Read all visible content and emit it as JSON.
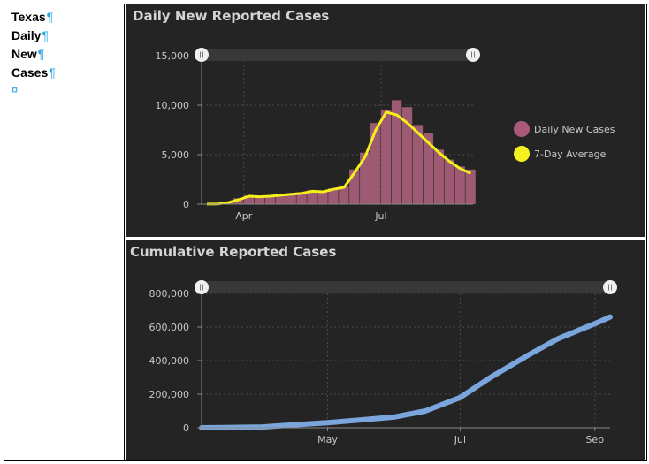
{
  "document": {
    "lines": [
      "Texas",
      "Daily",
      "New",
      "Cases"
    ],
    "pilcrow": "¶",
    "end_of_cell": "¤"
  },
  "colors": {
    "panel_bg": "#242424",
    "bar_fill": "#9e5a72",
    "avg_line": "#f5f01a",
    "cumulative_line": "#7aa6dd",
    "legend_daily": "#a85a78",
    "legend_avg": "#f5f020"
  },
  "chart_data": [
    {
      "type": "bar",
      "title": "Daily New Reported Cases",
      "xlabel": "",
      "ylabel": "",
      "x_ticks": [
        "Apr",
        "Jul"
      ],
      "y_ticks": [
        "0",
        "5,000",
        "10,000",
        "15,000"
      ],
      "ylim": [
        0,
        15000
      ],
      "grid": true,
      "legend_position": "right",
      "series": [
        {
          "name": "Daily New Cases",
          "kind": "bar",
          "x": [
            "Mar 4",
            "Mar 11",
            "Mar 18",
            "Mar 25",
            "Apr 1",
            "Apr 8",
            "Apr 15",
            "Apr 22",
            "Apr 29",
            "May 6",
            "May 13",
            "May 20",
            "May 27",
            "Jun 3",
            "Jun 10",
            "Jun 17",
            "Jun 24",
            "Jul 1",
            "Jul 8",
            "Jul 15",
            "Jul 22",
            "Jul 29",
            "Aug 5",
            "Aug 12",
            "Aug 19",
            "Aug 26"
          ],
          "values": [
            20,
            60,
            250,
            600,
            900,
            800,
            850,
            950,
            1100,
            1200,
            1400,
            1300,
            1600,
            1800,
            3500,
            5200,
            8200,
            9500,
            10500,
            9800,
            8000,
            7200,
            5500,
            4500,
            3800,
            3500
          ]
        },
        {
          "name": "7-Day Average",
          "kind": "line",
          "x": [
            "Mar 4",
            "Mar 11",
            "Mar 18",
            "Mar 25",
            "Apr 1",
            "Apr 8",
            "Apr 15",
            "Apr 22",
            "Apr 29",
            "May 6",
            "May 13",
            "May 20",
            "May 27",
            "Jun 3",
            "Jun 10",
            "Jun 17",
            "Jun 24",
            "Jul 1",
            "Jul 8",
            "Jul 15",
            "Jul 22",
            "Jul 29",
            "Aug 5",
            "Aug 12",
            "Aug 19",
            "Aug 26"
          ],
          "values": [
            5,
            30,
            150,
            450,
            800,
            750,
            800,
            900,
            1000,
            1100,
            1300,
            1250,
            1500,
            1700,
            3200,
            4800,
            7500,
            9300,
            9000,
            8200,
            7200,
            6200,
            5200,
            4300,
            3600,
            3100
          ]
        }
      ]
    },
    {
      "type": "line",
      "title": "Cumulative Reported Cases",
      "xlabel": "",
      "ylabel": "",
      "x_ticks": [
        "May",
        "Jul",
        "Sep"
      ],
      "y_ticks": [
        "0",
        "200,000",
        "400,000",
        "600,000",
        "800,000"
      ],
      "ylim": [
        0,
        800000
      ],
      "grid": true,
      "series": [
        {
          "name": "",
          "x": [
            "Mar 4",
            "Mar 15",
            "Apr 1",
            "Apr 15",
            "May 1",
            "May 15",
            "Jun 1",
            "Jun 15",
            "Jul 1",
            "Jul 15",
            "Aug 1",
            "Aug 15",
            "Sep 1",
            "Sep 8"
          ],
          "values": [
            0,
            1000,
            5000,
            17000,
            30000,
            45000,
            65000,
            100000,
            180000,
            300000,
            430000,
            530000,
            620000,
            660000
          ]
        }
      ]
    }
  ]
}
